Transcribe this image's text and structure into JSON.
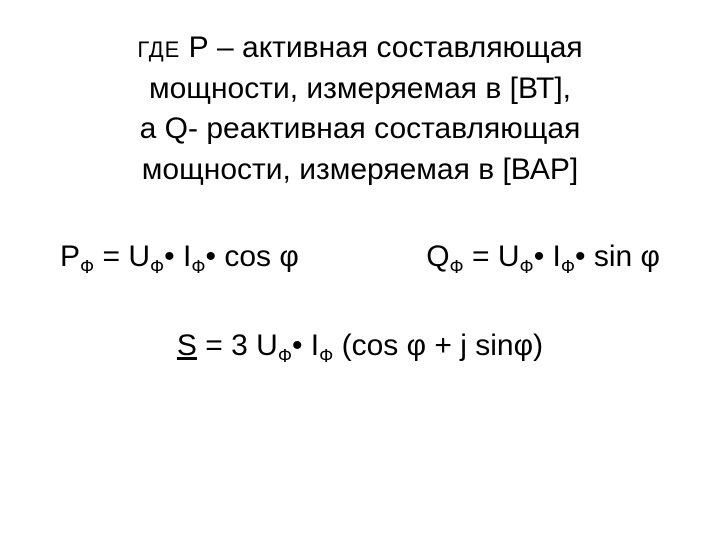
{
  "text_color": "#000000",
  "background_color": "#ffffff",
  "font_family": "Arial",
  "block1": {
    "where_label": "ГДЕ",
    "line1_rest": "Р – активная составляющая",
    "line2": "мощности, измеряемая в  [ВТ],",
    "line3": "а Q- реактивная составляющая",
    "line4": "мощности, измеряемая в [ВАР]"
  },
  "formulas": {
    "p_left": "Р",
    "p_sub": "Ф",
    "eq": " = U",
    "u_sub": "Ф",
    "dot_i": "• І",
    "i_sub": "Ф",
    "dot_cos": "• cos φ",
    "q_left": "Q",
    "q_sub": "Ф",
    "dot_sin": "• sin φ"
  },
  "formula_s": {
    "s": "S",
    "eq": " = 3 U",
    "u_sub": "Ф",
    "dot_i": "• І",
    "i_sub": "Ф",
    "tail": " (cos φ + j sinφ)"
  }
}
